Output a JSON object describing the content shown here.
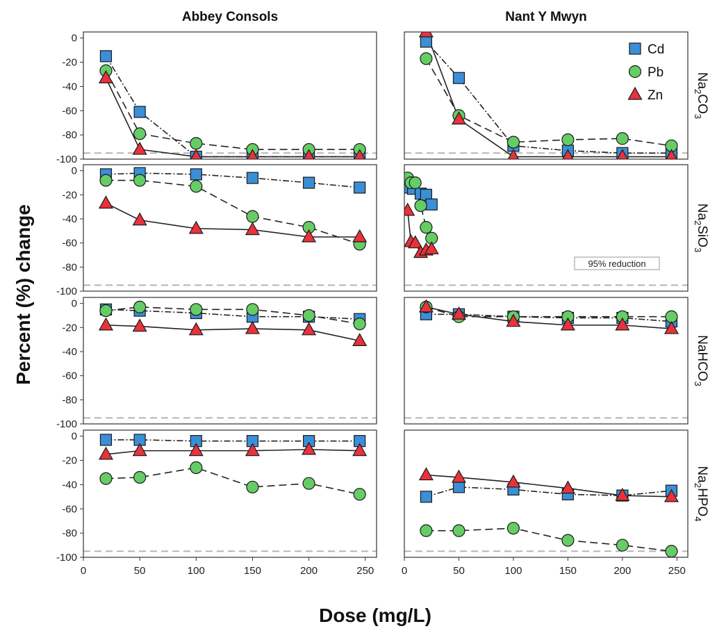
{
  "figure": {
    "xlabel": "Dose (mg/L)",
    "ylabel": "Percent (%) change",
    "columns": [
      "Abbey Consols",
      "Nant Y Mwyn"
    ],
    "rows": [
      {
        "base": "Na",
        "sub1": "2",
        "mid": "CO",
        "sub2": "3"
      },
      {
        "base": "Na",
        "sub1": "2",
        "mid": "SiO",
        "sub2": "3"
      },
      {
        "base": "NaHCO",
        "sub1": "3",
        "mid": "",
        "sub2": ""
      },
      {
        "base": "Na",
        "sub1": "2",
        "mid": "HPO",
        "sub2": "4"
      }
    ],
    "annotation": "95% reduction",
    "threshold": -95,
    "xticks": [
      0,
      50,
      100,
      150,
      200,
      250
    ],
    "yticks": [
      0,
      -20,
      -40,
      -60,
      -80,
      -100
    ],
    "xlim": [
      0,
      260
    ],
    "ylim": [
      -100,
      5
    ],
    "legend": {
      "placement": "top-right of Nant Y Mwyn Na2CO3 panel",
      "entries": [
        {
          "name": "Cd",
          "marker": "square",
          "color": "#3a8fd6"
        },
        {
          "name": "Pb",
          "marker": "circle",
          "color": "#66cc66"
        },
        {
          "name": "Zn",
          "marker": "triangle",
          "color": "#e8323c"
        }
      ]
    },
    "line_styles": {
      "Cd": "dash-dot",
      "Pb": "dashed",
      "Zn": "solid"
    }
  },
  "chart_data": [
    {
      "type": "line",
      "column": "Abbey Consols",
      "row": "Na2CO3",
      "series": [
        {
          "name": "Cd",
          "x": [
            20,
            50,
            100,
            150,
            200,
            245
          ],
          "values": [
            -15,
            -61,
            -98,
            -98,
            -98,
            -98
          ]
        },
        {
          "name": "Pb",
          "x": [
            20,
            50,
            100,
            150,
            200,
            245
          ],
          "values": [
            -27,
            -79,
            -87,
            -92,
            -92,
            -92
          ]
        },
        {
          "name": "Zn",
          "x": [
            20,
            50,
            100,
            150,
            200,
            245
          ],
          "values": [
            -33,
            -92,
            -98,
            -98,
            -98,
            -98
          ]
        }
      ]
    },
    {
      "type": "line",
      "column": "Nant Y Mwyn",
      "row": "Na2CO3",
      "series": [
        {
          "name": "Cd",
          "x": [
            20,
            50,
            100,
            150,
            200,
            245
          ],
          "values": [
            -3,
            -33,
            -89,
            -93,
            -95,
            -95
          ]
        },
        {
          "name": "Pb",
          "x": [
            20,
            50,
            100,
            150,
            200,
            245
          ],
          "values": [
            -17,
            -64,
            -86,
            -84,
            -83,
            -89
          ]
        },
        {
          "name": "Zn",
          "x": [
            20,
            50,
            100,
            150,
            200,
            245
          ],
          "values": [
            5,
            -67,
            -98,
            -98,
            -98,
            -98
          ]
        }
      ]
    },
    {
      "type": "line",
      "column": "Abbey Consols",
      "row": "Na2SiO3",
      "series": [
        {
          "name": "Cd",
          "x": [
            20,
            50,
            100,
            150,
            200,
            245
          ],
          "values": [
            -3,
            -2,
            -3,
            -6,
            -10,
            -14
          ]
        },
        {
          "name": "Pb",
          "x": [
            20,
            50,
            100,
            150,
            200,
            245
          ],
          "values": [
            -8,
            -8,
            -13,
            -38,
            -47,
            -61
          ]
        },
        {
          "name": "Zn",
          "x": [
            20,
            50,
            100,
            150,
            200,
            245
          ],
          "values": [
            -27,
            -41,
            -48,
            -49,
            -55,
            -55
          ]
        }
      ]
    },
    {
      "type": "line",
      "column": "Nant Y Mwyn",
      "row": "Na2SiO3",
      "series": [
        {
          "name": "Cd",
          "x": [
            3,
            8,
            15,
            20,
            25
          ],
          "values": [
            -14,
            -15,
            -19,
            -20,
            -28
          ]
        },
        {
          "name": "Pb",
          "x": [
            3,
            6,
            10,
            15,
            20,
            25
          ],
          "values": [
            -6,
            -10,
            -10,
            -29,
            -47,
            -56
          ]
        },
        {
          "name": "Zn",
          "x": [
            3,
            6,
            10,
            15,
            20,
            25
          ],
          "values": [
            -33,
            -59,
            -60,
            -68,
            -66,
            -65
          ]
        }
      ]
    },
    {
      "type": "line",
      "column": "Abbey Consols",
      "row": "NaHCO3",
      "series": [
        {
          "name": "Cd",
          "x": [
            20,
            50,
            100,
            150,
            200,
            245
          ],
          "values": [
            -5,
            -6,
            -8,
            -11,
            -11,
            -13
          ]
        },
        {
          "name": "Pb",
          "x": [
            20,
            50,
            100,
            150,
            200,
            245
          ],
          "values": [
            -6,
            -3,
            -5,
            -5,
            -10,
            -17
          ]
        },
        {
          "name": "Zn",
          "x": [
            20,
            50,
            100,
            150,
            200,
            245
          ],
          "values": [
            -18,
            -19,
            -22,
            -21,
            -22,
            -31
          ]
        }
      ]
    },
    {
      "type": "line",
      "column": "Nant Y Mwyn",
      "row": "NaHCO3",
      "series": [
        {
          "name": "Cd",
          "x": [
            20,
            50,
            100,
            150,
            200,
            245
          ],
          "values": [
            -9,
            -9,
            -11,
            -12,
            -12,
            -15
          ]
        },
        {
          "name": "Pb",
          "x": [
            20,
            50,
            100,
            150,
            200,
            245
          ],
          "values": [
            -3,
            -11,
            -11,
            -11,
            -11,
            -11
          ]
        },
        {
          "name": "Zn",
          "x": [
            20,
            50,
            100,
            150,
            200,
            245
          ],
          "values": [
            -3,
            -9,
            -15,
            -18,
            -18,
            -21
          ]
        }
      ]
    },
    {
      "type": "line",
      "column": "Abbey Consols",
      "row": "Na2HPO4",
      "series": [
        {
          "name": "Cd",
          "x": [
            20,
            50,
            100,
            150,
            200,
            245
          ],
          "values": [
            -3,
            -3,
            -4,
            -4,
            -4,
            -4
          ]
        },
        {
          "name": "Pb",
          "x": [
            20,
            50,
            100,
            150,
            200,
            245
          ],
          "values": [
            -35,
            -34,
            -26,
            -42,
            -39,
            -48
          ]
        },
        {
          "name": "Zn",
          "x": [
            20,
            50,
            100,
            150,
            200,
            245
          ],
          "values": [
            -15,
            -12,
            -12,
            -12,
            -11,
            -12
          ]
        }
      ]
    },
    {
      "type": "line",
      "column": "Nant Y Mwyn",
      "row": "Na2HPO4",
      "series": [
        {
          "name": "Cd",
          "x": [
            20,
            50,
            100,
            150,
            200,
            245
          ],
          "values": [
            -50,
            -42,
            -44,
            -48,
            -49,
            -45
          ]
        },
        {
          "name": "Pb",
          "x": [
            20,
            50,
            100,
            150,
            200,
            245
          ],
          "values": [
            -78,
            -78,
            -76,
            -86,
            -90,
            -95
          ]
        },
        {
          "name": "Zn",
          "x": [
            20,
            50,
            100,
            150,
            200,
            245
          ],
          "values": [
            -32,
            -34,
            -38,
            -43,
            -49,
            -50
          ]
        }
      ]
    }
  ]
}
